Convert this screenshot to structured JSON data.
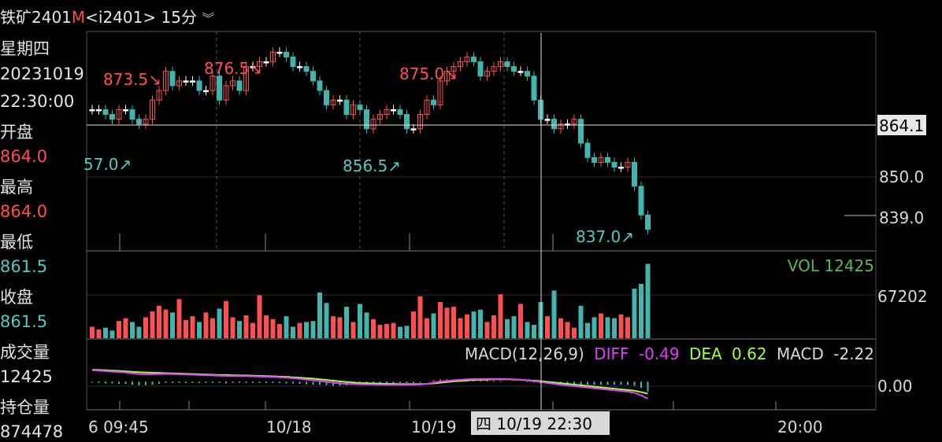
{
  "header": {
    "symbol": "铁矿2401",
    "marker": "M",
    "code": "<i2401>",
    "period": "15分",
    "chevron": "︾"
  },
  "sidebar": {
    "weekday": "星期四",
    "date": "20231019",
    "time": "22:30:00",
    "open_label": "开盘",
    "open_value": "864.0",
    "high_label": "最高",
    "high_value": "864.0",
    "low_label": "最低",
    "low_value": "861.5",
    "close_label": "收盘",
    "close_value": "861.5",
    "volume_label": "成交量",
    "volume_value": "12425",
    "oi_label": "持仓量",
    "oi_value": "874478"
  },
  "price_panel": {
    "cursor_price": "864.1",
    "price_ticks": [
      "850.0",
      "839.0"
    ],
    "annotations": [
      "873.5↘",
      "876.5↘",
      "875.0↘",
      "57.0↗",
      "856.5↗",
      "837.0↗"
    ]
  },
  "volume_panel": {
    "label": "VOL 12425",
    "tick": "67202"
  },
  "macd_panel": {
    "label": "MACD(12,26,9)",
    "diff_label": "DIFF",
    "diff_value": "-0.49",
    "dea_label": "DEA",
    "dea_value": "0.62",
    "macd_label": "MACD",
    "macd_value": "-2.22",
    "tick": "0.00"
  },
  "time_axis": {
    "labels": [
      "6 09:45",
      "10/18",
      "10/19",
      "20:00"
    ],
    "cursor_label": "四 10/19 22:30"
  },
  "colors": {
    "up": "#ff5050",
    "down": "#3fb5ad",
    "diff": "#e040fb",
    "dea": "#a0ff40",
    "grid": "#333333"
  },
  "chart_data": [
    {
      "type": "candlestick",
      "title": "铁矿2401 15分",
      "ylim": [
        835,
        880
      ],
      "series": [
        {
          "name": "close",
          "values": [
            864,
            864,
            863,
            862,
            864,
            864,
            862,
            861,
            862,
            866,
            868,
            872,
            869,
            870,
            870,
            870,
            868,
            868,
            871,
            866,
            869,
            870,
            868,
            873,
            873,
            874,
            874,
            876,
            876,
            875,
            873,
            873,
            872,
            870,
            868,
            865,
            866,
            866,
            863,
            865,
            864,
            860,
            862,
            863,
            864,
            864,
            863,
            860,
            860,
            863,
            866,
            865,
            870,
            872,
            873,
            874,
            875,
            874,
            871,
            872,
            873,
            874,
            873,
            872,
            872,
            871,
            866,
            862,
            862,
            860,
            861,
            861,
            862,
            857,
            854,
            853,
            854,
            853,
            852,
            852,
            853,
            848,
            842,
            839
          ]
        }
      ]
    },
    {
      "type": "bar",
      "title": "VOL 12425",
      "ylim": [
        0,
        90000
      ],
      "series": [
        {
          "name": "VOL",
          "values": [
            12000,
            9000,
            11000,
            8000,
            18000,
            21000,
            17000,
            12000,
            22000,
            28000,
            34000,
            30000,
            27000,
            41000,
            19000,
            23000,
            17000,
            27000,
            21000,
            31000,
            39000,
            22000,
            18000,
            24000,
            16000,
            45000,
            24000,
            20000,
            15000,
            23000,
            12000,
            16000,
            17000,
            18000,
            48000,
            37000,
            23000,
            22000,
            33000,
            17000,
            36000,
            27000,
            20000,
            14000,
            15000,
            16000,
            12000,
            13000,
            28000,
            44000,
            21000,
            26000,
            38000,
            32000,
            33000,
            21000,
            25000,
            28000,
            30000,
            17000,
            24000,
            46000,
            20000,
            23000,
            36000,
            17000,
            14000,
            38000,
            23000,
            50000,
            21000,
            17000,
            11000,
            34000,
            16000,
            22000,
            26000,
            22000,
            21000,
            25000,
            22000,
            52000,
            57000,
            78000
          ]
        }
      ]
    },
    {
      "type": "line",
      "title": "MACD(12,26,9)",
      "ylim": [
        -12,
        8
      ],
      "series": [
        {
          "name": "DIFF",
          "values": [
            5,
            4.8,
            4.6,
            4.4,
            4.2,
            4,
            3.6,
            3.3,
            3.2,
            3.2,
            3.3,
            3.4,
            3.3,
            3.2,
            3.1,
            3,
            2.9,
            2.8,
            2.7,
            2.6,
            2.5,
            2.5,
            2.4,
            2.4,
            2.3,
            2.2,
            2.1,
            2,
            1.9,
            1.7,
            1.5,
            1.2,
            0.9,
            0.6,
            0.3,
            -0.1,
            -0.5,
            -0.8,
            -1,
            -1.1,
            -1.2,
            -1.3,
            -1.3,
            -1.4,
            -1.4,
            -1.4,
            -1.4,
            -1.4,
            -1.4,
            -1.3,
            -1,
            -0.5,
            0,
            0.3,
            0.6,
            0.8,
            1,
            1.1,
            1.1,
            1.2,
            1.2,
            1.2,
            1.1,
            1,
            0.8,
            0.5,
            0.2,
            -0.2,
            -0.6,
            -1,
            -1.4,
            -1.7,
            -2,
            -2.3,
            -2.6,
            -2.9,
            -3.2,
            -3.5,
            -3.8,
            -4.1,
            -4.4,
            -4.9,
            -6,
            -7.5
          ]
        },
        {
          "name": "DEA",
          "values": [
            5.2,
            5.1,
            5,
            4.8,
            4.7,
            4.5,
            4.3,
            4.1,
            4,
            3.9,
            3.8,
            3.7,
            3.6,
            3.5,
            3.4,
            3.3,
            3.2,
            3.1,
            3,
            2.9,
            2.9,
            2.8,
            2.7,
            2.7,
            2.6,
            2.5,
            2.4,
            2.3,
            2.2,
            2.1,
            1.9,
            1.7,
            1.5,
            1.3,
            1,
            0.7,
            0.4,
            0.1,
            -0.2,
            -0.4,
            -0.6,
            -0.7,
            -0.8,
            -0.9,
            -1,
            -1,
            -1.1,
            -1.1,
            -1.1,
            -1.1,
            -1,
            -0.8,
            -0.5,
            -0.2,
            0.1,
            0.3,
            0.5,
            0.7,
            0.8,
            0.9,
            1,
            1,
            1,
            0.9,
            0.8,
            0.6,
            0.4,
            0.2,
            -0.1,
            -0.4,
            -0.7,
            -1,
            -1.3,
            -1.6,
            -1.9,
            -2.2,
            -2.5,
            -2.8,
            -3.1,
            -3.4,
            -3.7,
            -4,
            -4.6,
            -5.3
          ]
        },
        {
          "name": "MACD",
          "values": [
            -0.4,
            -0.6,
            -0.8,
            -0.8,
            -1,
            -1,
            -1.4,
            -1.6,
            -1.6,
            -1.4,
            -1,
            -0.6,
            -0.6,
            -0.6,
            -0.6,
            -0.6,
            -0.6,
            -0.6,
            -0.6,
            -0.6,
            -0.8,
            -0.6,
            -0.6,
            -0.6,
            -0.6,
            -0.6,
            -0.6,
            -0.6,
            -0.6,
            -0.8,
            -0.8,
            -1,
            -1.2,
            -1.4,
            -1.4,
            -1.6,
            -1.8,
            -1.8,
            -1.6,
            -1.4,
            -1.2,
            -1.2,
            -1,
            -1,
            -0.8,
            -0.8,
            -0.6,
            -0.6,
            -0.6,
            -0.4,
            0,
            0.6,
            1,
            1,
            1,
            1,
            1,
            0.8,
            0.6,
            0.6,
            0.4,
            0.4,
            0.2,
            0.2,
            0,
            -0.2,
            -0.4,
            -0.8,
            -1,
            -1.2,
            -1.4,
            -1.4,
            -1.4,
            -1.4,
            -1.4,
            -1.4,
            -1.4,
            -1.4,
            -1.4,
            -1.4,
            -1.4,
            -1.8,
            -2.8,
            -4.4
          ]
        }
      ]
    }
  ]
}
